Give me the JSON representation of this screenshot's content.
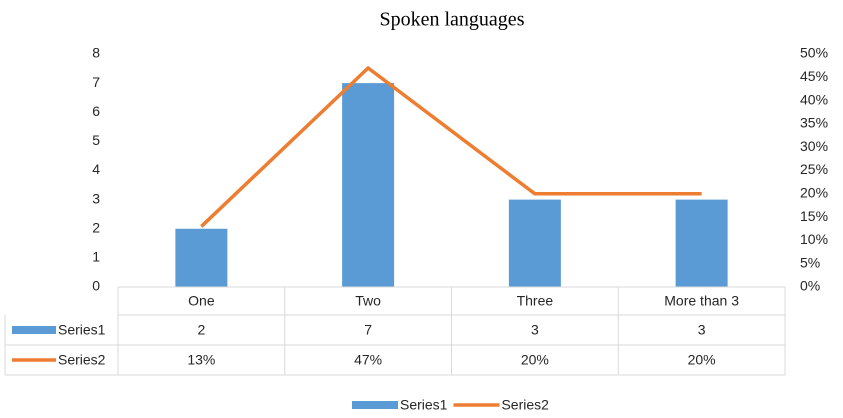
{
  "chart_data": {
    "type": "bar",
    "title": "Spoken languages",
    "categories": [
      "One",
      "Two",
      "Three",
      "More than 3"
    ],
    "series": [
      {
        "name": "Series1",
        "type": "bar",
        "color": "#5b9bd5",
        "values": [
          2,
          7,
          3,
          3
        ]
      },
      {
        "name": "Series2",
        "type": "line",
        "axis": "y2",
        "color": "#ed7d31",
        "values": [
          13,
          47,
          20,
          20
        ],
        "value_labels": [
          "13%",
          "47%",
          "20%",
          "20%"
        ]
      }
    ],
    "ylim": [
      0,
      8
    ],
    "yticks": [
      0,
      1,
      2,
      3,
      4,
      5,
      6,
      7,
      8
    ],
    "y2lim": [
      0,
      50
    ],
    "y2ticks": [
      {
        "value": 0,
        "label": "0%"
      },
      {
        "value": 5,
        "label": "5%"
      },
      {
        "value": 10,
        "label": "10%"
      },
      {
        "value": 15,
        "label": "15%"
      },
      {
        "value": 20,
        "label": "20%"
      },
      {
        "value": 25,
        "label": "25%"
      },
      {
        "value": 30,
        "label": "30%"
      },
      {
        "value": 35,
        "label": "35%"
      },
      {
        "value": 40,
        "label": "40%"
      },
      {
        "value": 45,
        "label": "45%"
      },
      {
        "value": 50,
        "label": "50%"
      }
    ],
    "grid": false,
    "data_table": true,
    "legend": "bottom"
  }
}
